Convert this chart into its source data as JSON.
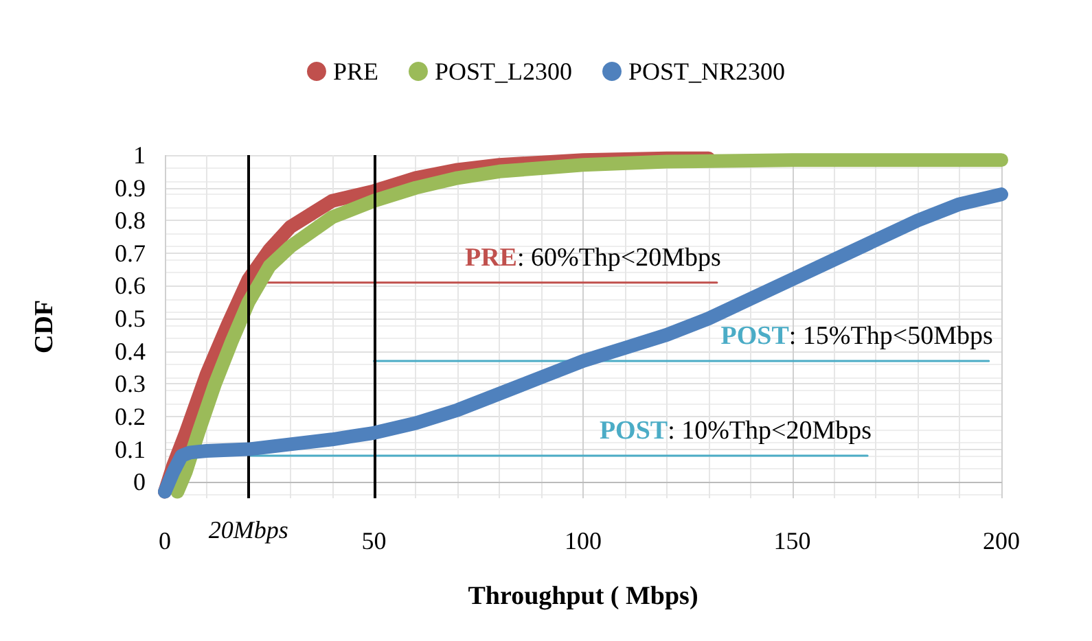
{
  "chart_data": {
    "type": "line",
    "xlabel": "Throughput ( Mbps)",
    "ylabel": "CDF",
    "legend": "top",
    "grid": true,
    "marker": "none",
    "xlim": [
      0,
      200
    ],
    "xticks": [
      0,
      50,
      100,
      150,
      200
    ],
    "ylim": [
      -0.05,
      1
    ],
    "yticks": [
      0,
      0.1,
      0.2,
      0.3,
      0.4,
      0.5,
      0.6,
      0.7,
      0.8,
      0.9,
      1
    ],
    "series": [
      {
        "name": "PRE",
        "color": "#c0504d",
        "x": [
          0,
          2,
          5,
          10,
          15,
          20,
          25,
          30,
          40,
          50,
          60,
          70,
          80,
          100,
          120,
          130
        ],
        "values": [
          -0.03,
          0.05,
          0.15,
          0.33,
          0.48,
          0.62,
          0.71,
          0.78,
          0.86,
          0.89,
          0.93,
          0.955,
          0.97,
          0.985,
          0.99,
          0.99
        ]
      },
      {
        "name": "POST_L2300",
        "color": "#9bbb59",
        "x": [
          3,
          5,
          8,
          12,
          16,
          20,
          25,
          30,
          40,
          50,
          60,
          70,
          80,
          100,
          120,
          150,
          200
        ],
        "values": [
          -0.03,
          0.03,
          0.15,
          0.3,
          0.43,
          0.55,
          0.66,
          0.72,
          0.81,
          0.86,
          0.9,
          0.93,
          0.95,
          0.97,
          0.98,
          0.985,
          0.985
        ]
      },
      {
        "name": "POST_NR2300",
        "color": "#4f81bd",
        "x": [
          0,
          2,
          4,
          6,
          10,
          20,
          30,
          40,
          50,
          60,
          70,
          80,
          90,
          100,
          110,
          120,
          130,
          140,
          150,
          160,
          170,
          180,
          190,
          200
        ],
        "values": [
          -0.03,
          0.03,
          0.08,
          0.09,
          0.095,
          0.1,
          0.115,
          0.13,
          0.15,
          0.18,
          0.22,
          0.27,
          0.32,
          0.37,
          0.41,
          0.45,
          0.5,
          0.56,
          0.62,
          0.68,
          0.74,
          0.8,
          0.85,
          0.88
        ]
      },
      {
        "color": "#c0504d",
        "x": [
          20,
          132
        ],
        "values": [
          0.61,
          0.61
        ]
      },
      {
        "color": "#4bacc6",
        "x": [
          50,
          197
        ],
        "values": [
          0.37,
          0.37
        ]
      },
      {
        "color": "#4bacc6",
        "x": [
          20,
          168
        ],
        "values": [
          0.08,
          0.08
        ]
      }
    ],
    "ref_lines": [
      {
        "axis": "x",
        "value": 20,
        "label": "20Mbps",
        "color": "#000000"
      },
      {
        "axis": "x",
        "value": 50,
        "color": "#000000"
      }
    ],
    "annotations": [
      "PRE: 60%Thp<20Mbps",
      "POST: 15%Thp<50Mbps",
      "POST: 10%Thp<20Mbps"
    ]
  }
}
